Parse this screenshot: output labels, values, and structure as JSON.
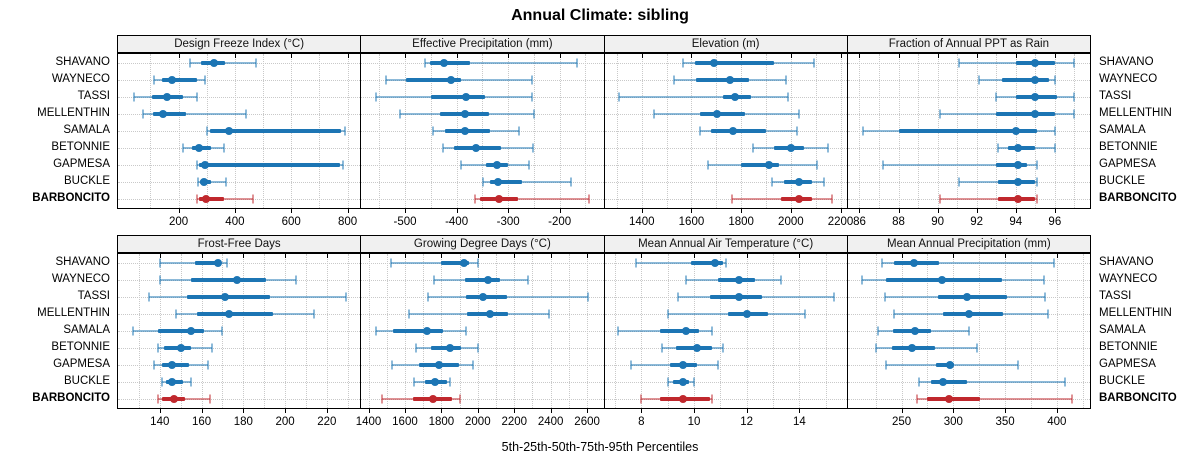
{
  "title": "Annual Climate: sibling",
  "caption": "5th-25th-50th-75th-95th Percentiles",
  "colors": {
    "series_blue": "#1c75b4",
    "series_blue_light": "rgba(28,117,180,0.5)",
    "highlight_red": "#c0282d",
    "highlight_red_light": "rgba(192,40,45,0.5)",
    "header_bg": "#f0f0f0",
    "gridline": "#c9c9c9",
    "border": "#000000"
  },
  "chart_data": {
    "type": "table",
    "subtype": "percentile-dot-whisker-trellis",
    "percentiles": [
      5,
      25,
      50,
      75,
      95
    ],
    "sites": [
      "SHAVANO",
      "WAYNECO",
      "TASSI",
      "MELLENTHIN",
      "SAMALA",
      "BETONNIE",
      "GAPMESA",
      "BUCKLE",
      "BARBONCITO"
    ],
    "highlight_site": "BARBONCITO",
    "legend_position": "bottom-caption",
    "panels": [
      {
        "title": "Design Freeze Index (°C)",
        "row": 0,
        "col": 0,
        "xlim": [
          -15,
          845
        ],
        "ticks": [
          200,
          400,
          600,
          800
        ],
        "gridlines": [
          100,
          200,
          300,
          400,
          500,
          600,
          700,
          800
        ],
        "series": [
          {
            "site": "SHAVANO",
            "p": [
              240,
              280,
              326,
              366,
              474
            ]
          },
          {
            "site": "WAYNECO",
            "p": [
              113,
              142,
              177,
              264,
              295
            ]
          },
          {
            "site": "TASSI",
            "p": [
              41,
              107,
              159,
              217,
              266
            ]
          },
          {
            "site": "MELLENTHIN",
            "p": [
              72,
              109,
              144,
              226,
              438
            ]
          },
          {
            "site": "SAMALA",
            "p": [
              301,
              313,
              378,
              777,
              790
            ]
          },
          {
            "site": "BETONNIE",
            "p": [
              215,
              247,
              272,
              316,
              363
            ]
          },
          {
            "site": "GAPMESA",
            "p": [
              264,
              272,
              295,
              772,
              785
            ]
          },
          {
            "site": "BUCKLE",
            "p": [
              268,
              276,
              291,
              316,
              369
            ]
          },
          {
            "site": "BARBONCITO",
            "p": [
              264,
              272,
              296,
              363,
              465
            ]
          }
        ]
      },
      {
        "title": "Effective Precipitation (mm)",
        "row": 0,
        "col": 1,
        "xlim": [
          -585,
          -115
        ],
        "ticks": [
          -500,
          -400,
          -300,
          -200
        ],
        "gridlines": [
          -550,
          -500,
          -450,
          -400,
          -350,
          -300,
          -250,
          -200,
          -150
        ],
        "series": [
          {
            "site": "SHAVANO",
            "p": [
              -462,
              -451,
              -424,
              -374,
              -166
            ]
          },
          {
            "site": "WAYNECO",
            "p": [
              -537,
              -499,
              -410,
              -392,
              -254
            ]
          },
          {
            "site": "TASSI",
            "p": [
              -556,
              -449,
              -382,
              -345,
              -253
            ]
          },
          {
            "site": "MELLENTHIN",
            "p": [
              -510,
              -432,
              -383,
              -338,
              -249
            ]
          },
          {
            "site": "SAMALA",
            "p": [
              -446,
              -423,
              -383,
              -335,
              -278
            ]
          },
          {
            "site": "BETONNIE",
            "p": [
              -427,
              -406,
              -362,
              -313,
              -252
            ]
          },
          {
            "site": "GAPMESA",
            "p": [
              -391,
              -342,
              -322,
              -300,
              -260
            ]
          },
          {
            "site": "BUCKLE",
            "p": [
              -348,
              -335,
              -319,
              -274,
              -178
            ]
          },
          {
            "site": "BARBONCITO",
            "p": [
              -364,
              -355,
              -318,
              -281,
              -143
            ]
          }
        ]
      },
      {
        "title": "Elevation (m)",
        "row": 0,
        "col": 2,
        "xlim": [
          1250,
          2225
        ],
        "ticks": [
          1400,
          1600,
          1800,
          2000,
          2200
        ],
        "gridlines": [
          1300,
          1400,
          1500,
          1600,
          1700,
          1800,
          1900,
          2000,
          2100,
          2200
        ],
        "series": [
          {
            "site": "SHAVANO",
            "p": [
              1567,
              1613,
              1689,
              1933,
              2093
            ]
          },
          {
            "site": "WAYNECO",
            "p": [
              1529,
              1620,
              1756,
              1833,
              1980
            ]
          },
          {
            "site": "TASSI",
            "p": [
              1307,
              1727,
              1777,
              1840,
              1987
            ]
          },
          {
            "site": "MELLENTHIN",
            "p": [
              1449,
              1633,
              1703,
              1816,
              2033
            ]
          },
          {
            "site": "SAMALA",
            "p": [
              1636,
              1680,
              1767,
              1900,
              2023
            ]
          },
          {
            "site": "BETONNIE",
            "p": [
              1849,
              1933,
              2000,
              2053,
              2151
            ]
          },
          {
            "site": "GAPMESA",
            "p": [
              1667,
              1800,
              1911,
              1953,
              2107
            ]
          },
          {
            "site": "BUCKLE",
            "p": [
              1924,
              1973,
              2031,
              2087,
              2133
            ]
          },
          {
            "site": "BARBONCITO",
            "p": [
              1763,
              1960,
              2031,
              2087,
              2167
            ]
          }
        ]
      },
      {
        "title": "Fraction of Annual PPT as Rain",
        "row": 0,
        "col": 3,
        "xlim": [
          85.4,
          97.8
        ],
        "ticks": [
          86,
          88,
          90,
          92,
          94,
          96
        ],
        "gridlines": [
          86,
          87,
          88,
          89,
          90,
          91,
          92,
          93,
          94,
          95,
          96,
          97
        ],
        "series": [
          {
            "site": "SHAVANO",
            "p": [
              91.1,
              94.0,
              95.0,
              96.0,
              97.0
            ]
          },
          {
            "site": "WAYNECO",
            "p": [
              92.1,
              93.3,
              95.0,
              95.7,
              96.0
            ]
          },
          {
            "site": "TASSI",
            "p": [
              93.0,
              94.0,
              95.0,
              96.1,
              97.0
            ]
          },
          {
            "site": "MELLENTHIN",
            "p": [
              90.1,
              93.0,
              95.0,
              96.0,
              97.0
            ]
          },
          {
            "site": "SAMALA",
            "p": [
              86.2,
              88.0,
              94.0,
              95.1,
              96.0
            ]
          },
          {
            "site": "BETONNIE",
            "p": [
              93.1,
              93.6,
              94.1,
              95.0,
              96.0
            ]
          },
          {
            "site": "GAPMESA",
            "p": [
              87.2,
              93.0,
              94.1,
              94.6,
              95.1
            ]
          },
          {
            "site": "BUCKLE",
            "p": [
              91.1,
              93.1,
              94.1,
              95.0,
              95.1
            ]
          },
          {
            "site": "BARBONCITO",
            "p": [
              90.1,
              93.1,
              94.1,
              95.0,
              95.1
            ]
          }
        ]
      },
      {
        "title": "Frost-Free Days",
        "row": 1,
        "col": 0,
        "xlim": [
          120,
          236
        ],
        "ticks": [
          140,
          160,
          180,
          200,
          220
        ],
        "gridlines": [
          130,
          140,
          150,
          160,
          170,
          180,
          190,
          200,
          210,
          220,
          230
        ],
        "series": [
          {
            "site": "SHAVANO",
            "p": [
              140,
              157,
              168,
              169,
              172
            ]
          },
          {
            "site": "WAYNECO",
            "p": [
              140,
              155,
              177,
              191,
              205
            ]
          },
          {
            "site": "TASSI",
            "p": [
              135,
              153,
              171,
              193,
              229
            ]
          },
          {
            "site": "MELLENTHIN",
            "p": [
              148,
              158,
              173,
              194,
              214
            ]
          },
          {
            "site": "SAMALA",
            "p": [
              127,
              139,
              155,
              161,
              170
            ]
          },
          {
            "site": "BETONNIE",
            "p": [
              139,
              142,
              150,
              155,
              165
            ]
          },
          {
            "site": "GAPMESA",
            "p": [
              137,
              141,
              146,
              154,
              163
            ]
          },
          {
            "site": "BUCKLE",
            "p": [
              141,
              143,
              146,
              151,
              155
            ]
          },
          {
            "site": "BARBONCITO",
            "p": [
              139,
              141,
              147,
              152,
              164
            ]
          }
        ]
      },
      {
        "title": "Growing Degree Days (°C)",
        "row": 1,
        "col": 1,
        "xlim": [
          1360,
          2690
        ],
        "ticks": [
          1400,
          1600,
          1800,
          2000,
          2200,
          2400,
          2600
        ],
        "gridlines": [
          1400,
          1500,
          1600,
          1700,
          1800,
          1900,
          2000,
          2100,
          2200,
          2300,
          2400,
          2500,
          2600
        ],
        "series": [
          {
            "site": "SHAVANO",
            "p": [
              1522,
              1800,
              1922,
              1950,
              2000
            ]
          },
          {
            "site": "WAYNECO",
            "p": [
              1758,
              1931,
              2058,
              2122,
              2276
            ]
          },
          {
            "site": "TASSI",
            "p": [
              1727,
              1935,
              2031,
              2158,
              2604
            ]
          },
          {
            "site": "MELLENTHIN",
            "p": [
              1622,
              1940,
              2067,
              2167,
              2391
            ]
          },
          {
            "site": "SAMALA",
            "p": [
              1440,
              1536,
              1722,
              1807,
              1935
            ]
          },
          {
            "site": "BETONNIE",
            "p": [
              1662,
              1745,
              1845,
              1909,
              2000
            ]
          },
          {
            "site": "GAPMESA",
            "p": [
              1531,
              1676,
              1785,
              1895,
              1971
            ]
          },
          {
            "site": "BUCKLE",
            "p": [
              1649,
              1709,
              1767,
              1831,
              1849
            ]
          },
          {
            "site": "BARBONCITO",
            "p": [
              1476,
              1644,
              1755,
              1858,
              1904
            ]
          }
        ]
      },
      {
        "title": "Mean Annual Air Temperature (°C)",
        "row": 1,
        "col": 2,
        "xlim": [
          6.6,
          15.8
        ],
        "ticks": [
          8,
          10,
          12,
          14
        ],
        "gridlines": [
          7,
          8,
          9,
          10,
          11,
          12,
          13,
          14,
          15
        ],
        "series": [
          {
            "site": "SHAVANO",
            "p": [
              7.8,
              9.9,
              10.8,
              11.1,
              11.2
            ]
          },
          {
            "site": "WAYNECO",
            "p": [
              9.7,
              10.9,
              11.7,
              12.3,
              13.3
            ]
          },
          {
            "site": "TASSI",
            "p": [
              9.4,
              10.6,
              11.7,
              12.6,
              15.3
            ]
          },
          {
            "site": "MELLENTHIN",
            "p": [
              9.0,
              11.3,
              12.0,
              12.8,
              14.2
            ]
          },
          {
            "site": "SAMALA",
            "p": [
              7.1,
              8.7,
              9.7,
              10.2,
              10.7
            ]
          },
          {
            "site": "BETONNIE",
            "p": [
              8.8,
              9.3,
              10.1,
              10.7,
              11.1
            ]
          },
          {
            "site": "GAPMESA",
            "p": [
              7.6,
              9.1,
              9.6,
              10.1,
              10.9
            ]
          },
          {
            "site": "BUCKLE",
            "p": [
              9.0,
              9.2,
              9.6,
              9.8,
              10.0
            ]
          },
          {
            "site": "BARBONCITO",
            "p": [
              8.0,
              8.7,
              9.6,
              10.6,
              10.7
            ]
          }
        ]
      },
      {
        "title": "Mean Annual Precipitation (mm)",
        "row": 1,
        "col": 3,
        "xlim": [
          198,
          432
        ],
        "ticks": [
          250,
          300,
          350,
          400
        ],
        "gridlines": [
          225,
          250,
          275,
          300,
          325,
          350,
          375,
          400,
          425
        ],
        "series": [
          {
            "site": "SHAVANO",
            "p": [
              231,
              243,
              262,
              286,
              397
            ]
          },
          {
            "site": "WAYNECO",
            "p": [
              212,
              235,
              289,
              347,
              388
            ]
          },
          {
            "site": "TASSI",
            "p": [
              234,
              285,
              313,
              352,
              389
            ]
          },
          {
            "site": "MELLENTHIN",
            "p": [
              243,
              290,
              315,
              348,
              391
            ]
          },
          {
            "site": "SAMALA",
            "p": [
              227,
              242,
              263,
              278,
              315
            ]
          },
          {
            "site": "BETONNIE",
            "p": [
              225,
              241,
              260,
              282,
              323
            ]
          },
          {
            "site": "GAPMESA",
            "p": [
              235,
              283,
              297,
              301,
              362
            ]
          },
          {
            "site": "BUCKLE",
            "p": [
              267,
              278,
              290,
              313,
              408
            ]
          },
          {
            "site": "BARBONCITO",
            "p": [
              265,
              275,
              296,
              326,
              415
            ]
          }
        ]
      }
    ]
  }
}
